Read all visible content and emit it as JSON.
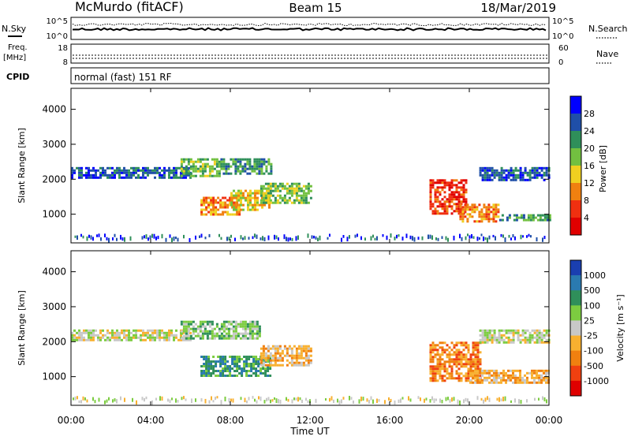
{
  "header": {
    "station": "McMurdo (fitACF)",
    "beam": "Beam 15",
    "date": "18/Mar/2019"
  },
  "noise_panel": {
    "left_label": "N.Sky",
    "right_label": "N.Search",
    "left_ticks": [
      "10^5",
      "10^0"
    ],
    "right_ticks": [
      "10^5",
      "10^0"
    ]
  },
  "freq_panel": {
    "left_label_1": "Freq.",
    "left_label_2": "[MHz]",
    "left_ticks": [
      "18",
      "8"
    ],
    "right_label": "Nave",
    "right_ticks": [
      "60",
      "0"
    ]
  },
  "cpid_panel": {
    "label": "CPID",
    "program": "normal (fast) 151 RF"
  },
  "axes": {
    "ylabel": "Slant Range [km]",
    "xlabel": "Time UT",
    "yticks": [
      "1000",
      "2000",
      "3000",
      "4000"
    ],
    "xticks": [
      "00:00",
      "04:00",
      "08:00",
      "12:00",
      "16:00",
      "20:00",
      "00:00"
    ]
  },
  "colorbars": {
    "power": {
      "label": "Power [dB]",
      "ticks": [
        "4",
        "8",
        "12",
        "16",
        "20",
        "24",
        "28"
      ],
      "colors": [
        "#0000ff",
        "#1f4fa8",
        "#2f8f5a",
        "#72c040",
        "#f0d020",
        "#f08010",
        "#f03010",
        "#e00000"
      ]
    },
    "velocity": {
      "label": "Velocity [m s⁻¹]",
      "ticks": [
        "1000",
        "500",
        "100",
        "25",
        "-25",
        "-100",
        "-500",
        "-1000"
      ],
      "colors": [
        "#1a3fb0",
        "#2a7ab0",
        "#2f8f5a",
        "#7ccc40",
        "#c8c8c8",
        "#f8b030",
        "#f08010",
        "#f04010",
        "#e00000"
      ]
    }
  },
  "chart_data": [
    {
      "type": "heatmap",
      "name": "power",
      "x_unit": "hours UT",
      "y_unit": "km",
      "xlim": [
        0,
        24
      ],
      "ylim": [
        180,
        4600
      ],
      "regions": [
        {
          "t0": 0.0,
          "t1": 6.0,
          "r0": 2050,
          "r1": 2350,
          "level": 1
        },
        {
          "t0": 5.5,
          "t1": 7.5,
          "r0": 2100,
          "r1": 2600,
          "level": 3
        },
        {
          "t0": 6.5,
          "t1": 8.5,
          "r0": 1000,
          "r1": 1500,
          "level": 5
        },
        {
          "t0": 8.0,
          "t1": 10.0,
          "r0": 1100,
          "r1": 1700,
          "level": 4
        },
        {
          "t0": 9.5,
          "t1": 12.0,
          "r0": 1300,
          "r1": 1900,
          "level": 3
        },
        {
          "t0": 7.5,
          "t1": 10.0,
          "r0": 2150,
          "r1": 2600,
          "level": 2
        },
        {
          "t0": 18.0,
          "t1": 19.8,
          "r0": 1000,
          "r1": 2000,
          "level": 6
        },
        {
          "t0": 19.5,
          "t1": 21.5,
          "r0": 800,
          "r1": 1300,
          "level": 5
        },
        {
          "t0": 21.5,
          "t1": 24.0,
          "r0": 800,
          "r1": 1000,
          "level": 2
        },
        {
          "t0": 20.5,
          "t1": 24.0,
          "r0": 2000,
          "r1": 2350,
          "level": 1
        }
      ]
    },
    {
      "type": "heatmap",
      "name": "velocity",
      "x_unit": "hours UT",
      "y_unit": "km",
      "xlim": [
        0,
        24
      ],
      "ylim": [
        180,
        4600
      ],
      "regions": [
        {
          "t0": 0.0,
          "t1": 6.0,
          "r0": 2050,
          "r1": 2350,
          "level": 4
        },
        {
          "t0": 6.5,
          "t1": 10.0,
          "r0": 1000,
          "r1": 1600,
          "level": 2
        },
        {
          "t0": 9.5,
          "t1": 12.0,
          "r0": 1300,
          "r1": 1900,
          "level": 5
        },
        {
          "t0": 5.5,
          "t1": 9.5,
          "r0": 2100,
          "r1": 2600,
          "level": 3
        },
        {
          "t0": 18.0,
          "t1": 20.5,
          "r0": 900,
          "r1": 2000,
          "level": 6
        },
        {
          "t0": 20.0,
          "t1": 24.0,
          "r0": 800,
          "r1": 1200,
          "level": 5
        },
        {
          "t0": 20.5,
          "t1": 24.0,
          "r0": 2000,
          "r1": 2350,
          "level": 4
        }
      ]
    }
  ]
}
